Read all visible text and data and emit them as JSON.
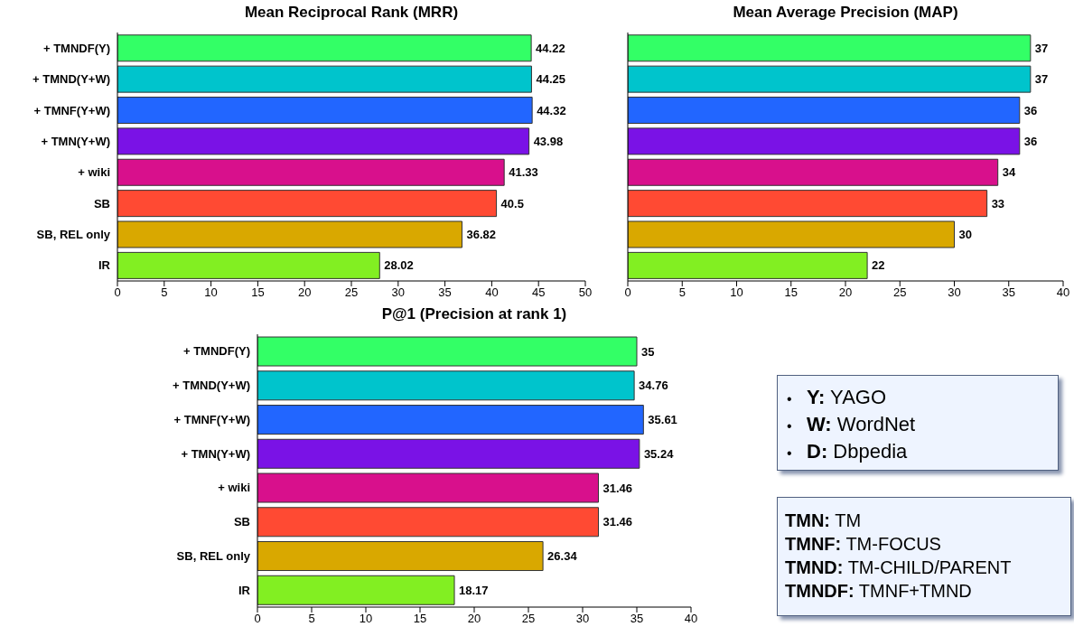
{
  "chart_data": [
    {
      "type": "bar",
      "orientation": "horizontal",
      "title": "Mean Reciprocal Rank (MRR)",
      "categories": [
        "+ TMNDF(Y)",
        "+ TMND(Y+W)",
        "+ TMNF(Y+W)",
        "+ TMN(Y+W)",
        "+ wiki",
        "SB",
        "SB, REL only",
        "IR"
      ],
      "values": [
        44.22,
        44.25,
        44.32,
        43.98,
        41.33,
        40.5,
        36.82,
        28.02
      ],
      "colors": [
        "#33ff66",
        "#00c4cc",
        "#2266ff",
        "#7a12e6",
        "#d8108c",
        "#ff4a33",
        "#d9a800",
        "#82ef22"
      ],
      "xlim": [
        0,
        50
      ],
      "xticks": [
        0,
        5,
        10,
        15,
        20,
        25,
        30,
        35,
        40,
        45,
        50
      ],
      "data_labels": true
    },
    {
      "type": "bar",
      "orientation": "horizontal",
      "title": "Mean Average Precision (MAP)",
      "categories": [
        null,
        null,
        null,
        null,
        null,
        null,
        null,
        null
      ],
      "values": [
        37,
        37,
        36,
        36,
        34,
        33,
        30,
        22
      ],
      "colors": [
        "#33ff66",
        "#00c4cc",
        "#2266ff",
        "#7a12e6",
        "#d8108c",
        "#ff4a33",
        "#d9a800",
        "#82ef22"
      ],
      "xlim": [
        0,
        40
      ],
      "xticks": [
        0,
        5,
        10,
        15,
        20,
        25,
        30,
        35,
        40
      ],
      "data_labels": true,
      "tick_labels": "x"
    },
    {
      "type": "bar",
      "orientation": "horizontal",
      "title": "P@1 (Precision at rank 1)",
      "categories": [
        "+ TMNDF(Y)",
        "+ TMND(Y+W)",
        "+ TMNF(Y+W)",
        "+ TMN(Y+W)",
        "+ wiki",
        "SB",
        "SB, REL only",
        "IR"
      ],
      "values": [
        35,
        34.76,
        35.61,
        35.24,
        31.46,
        31.46,
        26.34,
        18.17
      ],
      "colors": [
        "#33ff66",
        "#00c4cc",
        "#2266ff",
        "#7a12e6",
        "#d8108c",
        "#ff4a33",
        "#d9a800",
        "#82ef22"
      ],
      "xlim": [
        0,
        40
      ],
      "xticks": [
        0,
        5,
        10,
        15,
        20,
        25,
        30,
        35,
        40
      ],
      "data_labels": true
    },
    {
      "type": "other",
      "annotations": [
        "• Y: YAGO",
        "• W: WordNet",
        "• D: Dbpedia"
      ]
    },
    {
      "type": "other",
      "annotations": [
        "TMN: TM",
        "TMNF: TM-FOCUS",
        "TMND: TM-CHILD/PARENT",
        "TMNDF: TMNF+TMND"
      ]
    }
  ]
}
